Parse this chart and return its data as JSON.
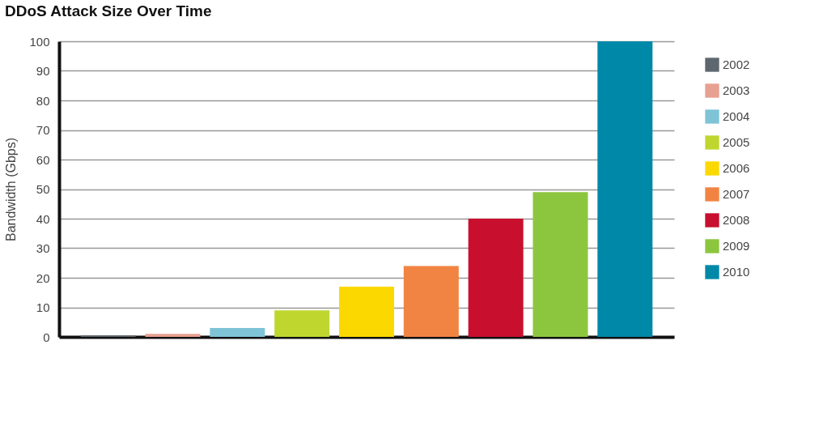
{
  "chart_data": {
    "type": "bar",
    "title": "DDoS Attack Size Over Time",
    "ylabel": "Bandwidth (Gbps)",
    "categories": [
      null,
      null,
      null,
      null,
      null,
      null,
      null,
      null,
      null
    ],
    "series": [
      {
        "name": "2002",
        "color": "#5f676e",
        "values": [
          0.5,
          null,
          null,
          null,
          null,
          null,
          null,
          null,
          null
        ]
      },
      {
        "name": "2003",
        "color": "#e8a090",
        "values": [
          null,
          1,
          null,
          null,
          null,
          null,
          null,
          null,
          null
        ]
      },
      {
        "name": "2004",
        "color": "#7ec4d6",
        "values": [
          null,
          null,
          3,
          null,
          null,
          null,
          null,
          null,
          null
        ]
      },
      {
        "name": "2005",
        "color": "#bfd62f",
        "values": [
          null,
          null,
          null,
          9,
          null,
          null,
          null,
          null,
          null
        ]
      },
      {
        "name": "2006",
        "color": "#fbd900",
        "values": [
          null,
          null,
          null,
          null,
          17,
          null,
          null,
          null,
          null
        ]
      },
      {
        "name": "2007",
        "color": "#f28443",
        "values": [
          null,
          null,
          null,
          null,
          null,
          24,
          null,
          null,
          null
        ]
      },
      {
        "name": "2008",
        "color": "#c8102e",
        "values": [
          null,
          null,
          null,
          null,
          null,
          null,
          40,
          null,
          null
        ]
      },
      {
        "name": "2009",
        "color": "#8cc63f",
        "values": [
          null,
          null,
          null,
          null,
          null,
          null,
          null,
          49,
          null
        ]
      },
      {
        "name": "2010",
        "color": "#0088a8",
        "values": [
          null,
          null,
          null,
          null,
          null,
          null,
          null,
          null,
          100
        ]
      }
    ],
    "ylim": [
      0,
      100
    ],
    "yticks": [
      0,
      10,
      20,
      30,
      40,
      50,
      60,
      70,
      80,
      90,
      100
    ],
    "grid": "y",
    "legend": "right",
    "tick_labels": "y"
  }
}
